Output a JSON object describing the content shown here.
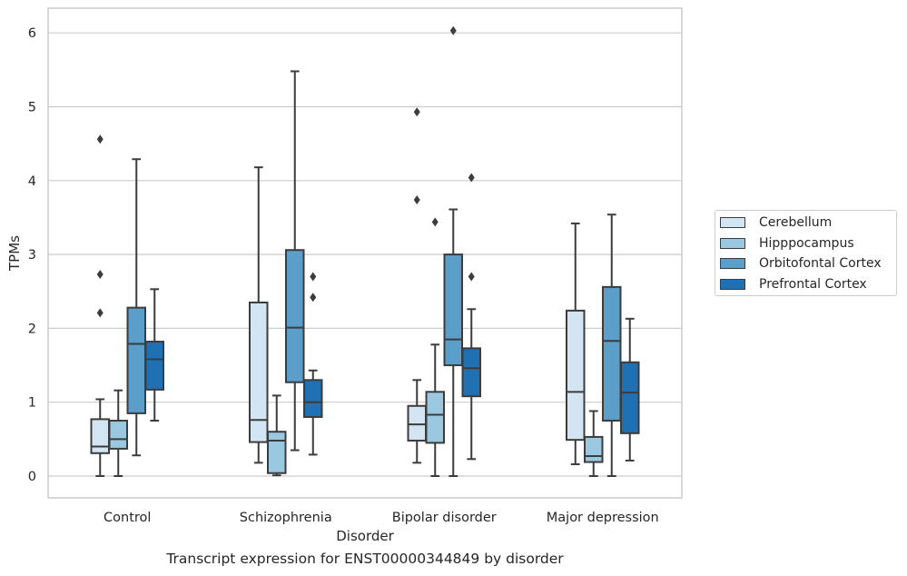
{
  "caption": "Transcript expression for ENST00000344849 by disorder",
  "chart_data": {
    "type": "boxplot",
    "title": "",
    "xlabel": "Disorder",
    "ylabel": "TPMs",
    "ylim": [
      -0.3,
      6.35
    ],
    "yticks": [
      0,
      1,
      2,
      3,
      4,
      5,
      6
    ],
    "grid": "horizontal",
    "legend_position": "right",
    "categories": [
      "Control",
      "Schizophrenia",
      "Bipolar disorder",
      "Major depression"
    ],
    "series": [
      {
        "name": "Cerebellum",
        "color": "#d3e4f3",
        "boxes": [
          {
            "whisker_low": 0.0,
            "q1": 0.31,
            "median": 0.4,
            "q3": 0.77,
            "whisker_high": 1.04,
            "outliers": [
              2.21,
              2.73,
              4.56
            ]
          },
          {
            "whisker_low": 0.18,
            "q1": 0.46,
            "median": 0.76,
            "q3": 2.35,
            "whisker_high": 4.18,
            "outliers": []
          },
          {
            "whisker_low": 0.18,
            "q1": 0.48,
            "median": 0.7,
            "q3": 0.95,
            "whisker_high": 1.3,
            "outliers": [
              3.74,
              4.93
            ]
          },
          {
            "whisker_low": 0.16,
            "q1": 0.49,
            "median": 1.14,
            "q3": 2.24,
            "whisker_high": 3.42,
            "outliers": []
          }
        ]
      },
      {
        "name": "Hipppocampus",
        "color": "#9ac8e0",
        "boxes": [
          {
            "whisker_low": 0.0,
            "q1": 0.37,
            "median": 0.5,
            "q3": 0.75,
            "whisker_high": 1.16,
            "outliers": []
          },
          {
            "whisker_low": 0.01,
            "q1": 0.04,
            "median": 0.48,
            "q3": 0.6,
            "whisker_high": 1.09,
            "outliers": []
          },
          {
            "whisker_low": 0.0,
            "q1": 0.45,
            "median": 0.83,
            "q3": 1.14,
            "whisker_high": 1.78,
            "outliers": [
              3.44
            ]
          },
          {
            "whisker_low": 0.0,
            "q1": 0.19,
            "median": 0.27,
            "q3": 0.53,
            "whisker_high": 0.88,
            "outliers": []
          }
        ]
      },
      {
        "name": "Orbitofontal Cortex",
        "color": "#5a9ec9",
        "boxes": [
          {
            "whisker_low": 0.28,
            "q1": 0.85,
            "median": 1.79,
            "q3": 2.28,
            "whisker_high": 4.29,
            "outliers": []
          },
          {
            "whisker_low": 0.35,
            "q1": 1.27,
            "median": 2.01,
            "q3": 3.06,
            "whisker_high": 5.48,
            "outliers": []
          },
          {
            "whisker_low": 0.0,
            "q1": 1.5,
            "median": 1.85,
            "q3": 3.0,
            "whisker_high": 3.61,
            "outliers": [
              6.03
            ]
          },
          {
            "whisker_low": 0.0,
            "q1": 0.75,
            "median": 1.83,
            "q3": 2.56,
            "whisker_high": 3.54,
            "outliers": []
          }
        ]
      },
      {
        "name": "Prefrontal Cortex",
        "color": "#2070b4",
        "boxes": [
          {
            "whisker_low": 0.75,
            "q1": 1.17,
            "median": 1.58,
            "q3": 1.82,
            "whisker_high": 2.53,
            "outliers": []
          },
          {
            "whisker_low": 0.29,
            "q1": 0.8,
            "median": 1.0,
            "q3": 1.3,
            "whisker_high": 1.43,
            "outliers": [
              2.42,
              2.7
            ]
          },
          {
            "whisker_low": 0.23,
            "q1": 1.08,
            "median": 1.46,
            "q3": 1.73,
            "whisker_high": 2.26,
            "outliers": [
              2.7,
              4.04
            ]
          },
          {
            "whisker_low": 0.21,
            "q1": 0.58,
            "median": 1.13,
            "q3": 1.54,
            "whisker_high": 2.13,
            "outliers": []
          }
        ]
      }
    ]
  }
}
